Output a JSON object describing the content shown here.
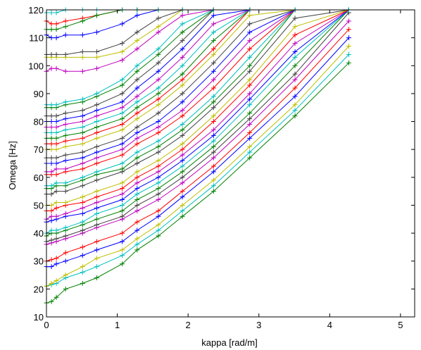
{
  "chart_data": {
    "type": "line",
    "title": "",
    "xlabel": "kappa [rad/m]",
    "ylabel": "Omega [Hz]",
    "xlim": [
      0,
      5.2
    ],
    "ylim": [
      10,
      120
    ],
    "xticks": [
      0,
      1,
      2,
      3,
      4,
      5
    ],
    "yticks": [
      10,
      20,
      30,
      40,
      50,
      60,
      70,
      80,
      90,
      100,
      110,
      120
    ],
    "grid": false,
    "legend": "none",
    "marker": "+",
    "x": [
      0,
      0.07,
      0.14,
      0.27,
      0.51,
      0.71,
      1.07,
      1.28,
      1.58,
      1.92,
      2.36,
      2.87,
      3.51,
      4.27
    ],
    "series": [
      {
        "color": "#008000",
        "values": [
          15,
          15.5,
          17,
          20,
          22,
          24,
          29,
          34,
          39,
          46,
          55,
          67,
          82,
          101
        ]
      },
      {
        "color": "#00bfbf",
        "values": [
          21,
          21.5,
          22,
          24,
          26,
          28,
          32,
          36,
          41,
          48,
          57,
          69,
          84,
          104
        ]
      },
      {
        "color": "#bfbf00",
        "values": [
          21,
          22,
          23,
          25,
          28,
          31,
          34,
          38,
          43,
          50,
          59,
          71,
          86,
          107
        ]
      },
      {
        "color": "#0000ff",
        "values": [
          28,
          28,
          29,
          30,
          32,
          34,
          37,
          41,
          46,
          53,
          62,
          74,
          89,
          110
        ]
      },
      {
        "color": "#ff0000",
        "values": [
          30,
          30.5,
          31,
          33,
          35,
          37,
          40,
          44,
          48,
          55,
          64,
          76,
          92,
          113
        ]
      },
      {
        "color": "#bf00bf",
        "values": [
          36,
          36.5,
          37,
          38,
          40,
          42,
          45,
          48,
          52,
          58,
          67,
          79,
          95,
          116
        ]
      },
      {
        "color": "#404040",
        "values": [
          37,
          37.5,
          38,
          39,
          41,
          43,
          46,
          50,
          54,
          60,
          69,
          81,
          97,
          119
        ]
      },
      {
        "color": "#008000",
        "values": [
          39,
          40,
          40,
          41,
          43,
          45,
          48,
          52,
          56,
          62,
          71,
          83,
          100,
          120
        ]
      },
      {
        "color": "#00bfbf",
        "values": [
          40,
          41,
          41,
          42,
          44,
          47,
          50,
          54,
          58,
          64,
          73,
          86,
          103,
          120
        ]
      },
      {
        "color": "#0000ff",
        "values": [
          44,
          44.5,
          45,
          46,
          47,
          49,
          52,
          56,
          60,
          66,
          75,
          88,
          105,
          120
        ]
      },
      {
        "color": "#bf00bf",
        "values": [
          45,
          46,
          46,
          47,
          49,
          51,
          54,
          58,
          62,
          68,
          77,
          90,
          108,
          120
        ]
      },
      {
        "color": "#ff0000",
        "values": [
          48,
          48,
          49,
          50,
          51,
          53,
          56,
          60,
          64,
          70,
          80,
          93,
          111,
          120
        ]
      },
      {
        "color": "#bfbf00",
        "values": [
          50,
          50,
          51,
          51,
          53,
          55,
          58,
          62,
          66,
          72,
          82,
          95,
          114,
          120
        ]
      },
      {
        "color": "#404040",
        "values": [
          54,
          54,
          55,
          55,
          57,
          59,
          62,
          65,
          69,
          75,
          85,
          98,
          117,
          120
        ]
      },
      {
        "color": "#008000",
        "values": [
          56,
          56,
          57,
          57,
          59,
          61,
          63,
          67,
          71,
          77,
          87,
          100,
          120,
          120
        ]
      },
      {
        "color": "#00bfbf",
        "values": [
          57,
          57,
          58,
          58,
          60,
          62,
          65,
          69,
          73,
          79,
          89,
          103,
          120,
          120
        ]
      },
      {
        "color": "#ff0000",
        "values": [
          61,
          61,
          61,
          62,
          63,
          65,
          68,
          72,
          76,
          82,
          92,
          106,
          120,
          120
        ]
      },
      {
        "color": "#bf00bf",
        "values": [
          62,
          62,
          63,
          63,
          65,
          67,
          70,
          74,
          78,
          84,
          95,
          109,
          120,
          120
        ]
      },
      {
        "color": "#0000ff",
        "values": [
          65,
          65,
          65,
          66,
          67,
          69,
          72,
          76,
          80,
          87,
          98,
          112,
          120,
          120
        ]
      },
      {
        "color": "#404040",
        "values": [
          67,
          67,
          67,
          68,
          69,
          71,
          74,
          78,
          83,
          90,
          101,
          115,
          120,
          120
        ]
      },
      {
        "color": "#bfbf00",
        "values": [
          70,
          70,
          70,
          71,
          72,
          74,
          77,
          81,
          86,
          93,
          104,
          118,
          120,
          120
        ]
      },
      {
        "color": "#ff0000",
        "values": [
          72,
          72,
          72,
          73,
          74,
          76,
          79,
          83,
          88,
          95,
          106,
          120,
          120,
          120
        ]
      },
      {
        "color": "#008000",
        "values": [
          74,
          74,
          74,
          75,
          76,
          78,
          81,
          85,
          90,
          97,
          109,
          120,
          120,
          120
        ]
      },
      {
        "color": "#00bfbf",
        "values": [
          76,
          76,
          76,
          77,
          78,
          80,
          83,
          87,
          92,
          100,
          112,
          120,
          120,
          120
        ]
      },
      {
        "color": "#bf00bf",
        "values": [
          78,
          78,
          78,
          79,
          80,
          82,
          85,
          89,
          95,
          103,
          115,
          120,
          120,
          120
        ]
      },
      {
        "color": "#0000ff",
        "values": [
          80,
          80,
          80,
          81,
          82,
          84,
          87,
          92,
          98,
          106,
          118,
          120,
          120,
          120
        ]
      },
      {
        "color": "#404040",
        "values": [
          82,
          82,
          82,
          83,
          84,
          86,
          90,
          95,
          101,
          109,
          120,
          120,
          120,
          120
        ]
      },
      {
        "color": "#008000",
        "values": [
          85,
          85,
          85,
          86,
          87,
          89,
          93,
          98,
          104,
          112,
          120,
          120,
          120,
          120
        ]
      },
      {
        "color": "#00bfbf",
        "values": [
          86,
          86,
          86,
          87,
          88,
          90,
          95,
          100,
          106,
          115,
          120,
          120,
          120,
          120
        ]
      },
      {
        "color": "#bf00bf",
        "values": [
          98,
          99,
          99,
          98,
          98,
          99,
          102,
          106,
          112,
          118,
          120,
          120,
          120,
          120
        ]
      },
      {
        "color": "#bfbf00",
        "values": [
          103,
          103,
          103,
          103,
          103,
          103,
          105,
          109,
          114,
          120,
          120,
          120,
          120,
          120
        ]
      },
      {
        "color": "#404040",
        "values": [
          104,
          104,
          104,
          104,
          105,
          105,
          108,
          112,
          117,
          120,
          120,
          120,
          120,
          120
        ]
      },
      {
        "color": "#0000ff",
        "values": [
          111,
          110,
          110,
          111,
          111,
          112,
          115,
          118,
          120,
          120,
          120,
          120,
          120,
          120
        ]
      },
      {
        "color": "#ff0000",
        "values": [
          116,
          115,
          115,
          116,
          117,
          118,
          120,
          120,
          120,
          120,
          120,
          120,
          120,
          120
        ]
      },
      {
        "color": "#008000",
        "values": [
          113,
          113,
          113,
          114,
          116,
          118,
          120,
          120,
          120,
          120,
          120,
          120,
          120,
          120
        ]
      },
      {
        "color": "#00bfbf",
        "values": [
          119,
          119,
          119,
          120,
          120,
          120,
          120,
          120,
          120,
          120,
          120,
          120,
          120,
          120
        ]
      }
    ]
  }
}
